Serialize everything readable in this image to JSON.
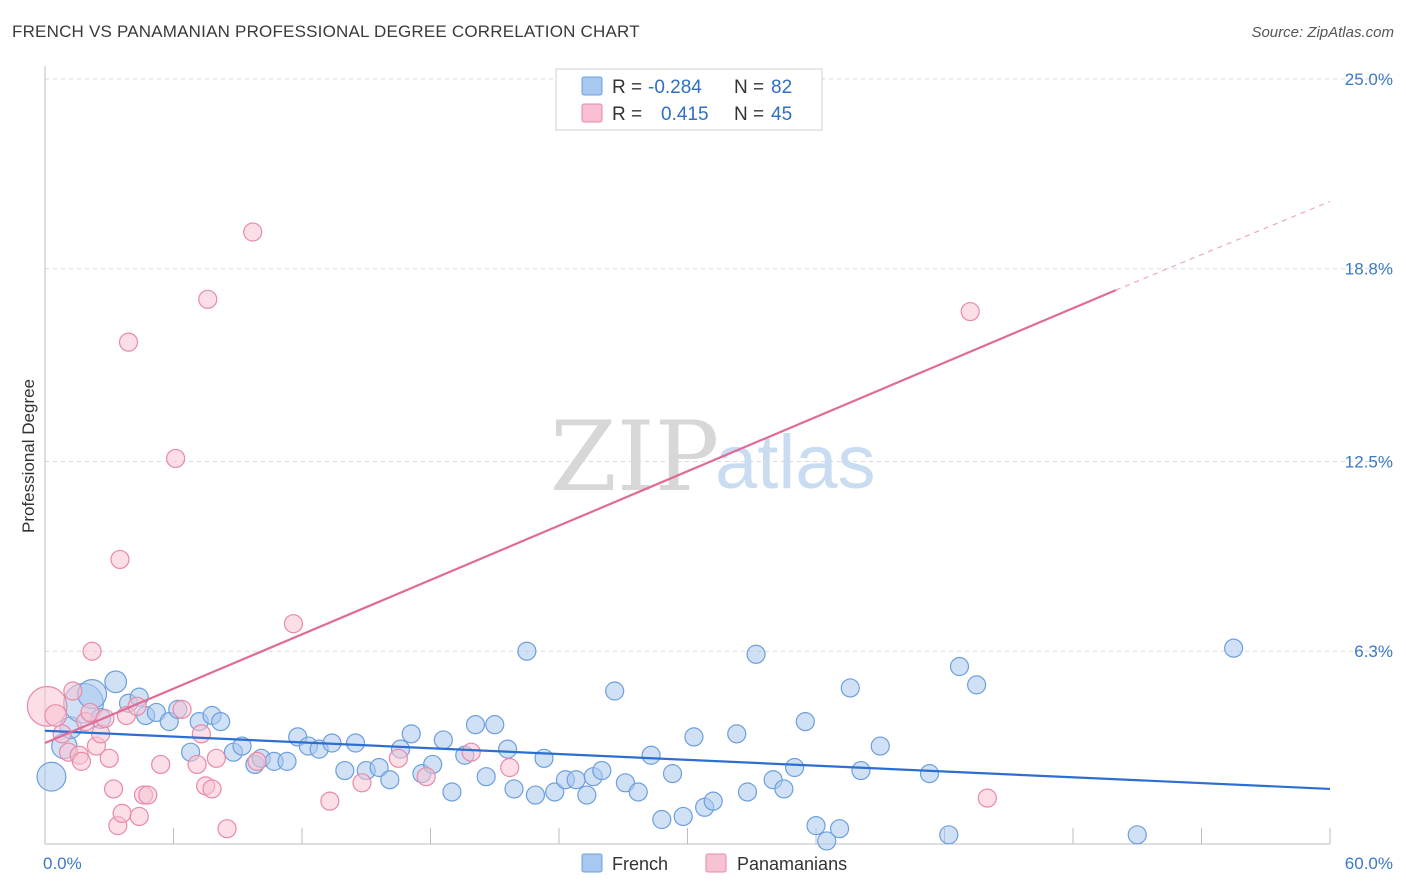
{
  "header": {
    "title": "FRENCH VS PANAMANIAN PROFESSIONAL DEGREE CORRELATION CHART",
    "source": "Source: ZipAtlas.com"
  },
  "watermark": {
    "part1": "ZIP",
    "part2": "atlas"
  },
  "legend": {
    "rows": [
      {
        "r_label": "R =",
        "r_value": "-0.284",
        "n_label": "N =",
        "n_value": "82",
        "color": "#a9c8ef"
      },
      {
        "r_label": "R =",
        "r_value": "0.415",
        "n_label": "N =",
        "n_value": "45",
        "color": "#f7bfd0"
      }
    ]
  },
  "bottom_legend": {
    "french": "French",
    "panamanians": "Panamanians"
  },
  "colors": {
    "french_fill": "#a9c8ef",
    "french_stroke": "#6d9fdc",
    "french_line": "#2c6fd0",
    "pan_fill": "#f7c3d2",
    "pan_stroke": "#e88aa8",
    "pan_line": "#e06b97",
    "tick": "#3b78c6",
    "grid": "#d9d9d9"
  },
  "chart_data": {
    "type": "scatter",
    "title": "FRENCH VS PANAMANIAN PROFESSIONAL DEGREE CORRELATION CHART",
    "xlabel": "",
    "ylabel": "Professional Degree",
    "xlim": [
      0,
      60
    ],
    "ylim": [
      0,
      25
    ],
    "x_tick_labels": [
      "0.0%",
      "60.0%"
    ],
    "y_ticks": [
      6.3,
      12.5,
      18.8,
      25.0
    ],
    "y_tick_labels": [
      "6.3%",
      "12.5%",
      "18.8%",
      "25.0%"
    ],
    "grid": true,
    "legend_position": "top-center",
    "series": [
      {
        "name": "French",
        "r": -0.284,
        "n": 82,
        "trend": {
          "x": [
            0,
            60
          ],
          "y": [
            3.7,
            1.8
          ]
        },
        "points": [
          [
            0.3,
            2.2,
            1.6
          ],
          [
            0.9,
            3.2,
            1.4
          ],
          [
            1.2,
            3.8,
            1.2
          ],
          [
            1.8,
            4.6,
            2.2
          ],
          [
            2.2,
            4.9,
            1.6
          ],
          [
            2.6,
            4.1,
            1.1
          ],
          [
            3.3,
            5.3,
            1.2
          ],
          [
            3.9,
            4.6,
            1
          ],
          [
            4.4,
            4.8,
            1
          ],
          [
            4.7,
            4.2,
            1
          ],
          [
            5.2,
            4.3,
            1
          ],
          [
            5.8,
            4,
            1
          ],
          [
            6.2,
            4.4,
            1
          ],
          [
            6.8,
            3.0,
            1
          ],
          [
            7.2,
            4.0,
            1
          ],
          [
            7.8,
            4.2,
            1
          ],
          [
            8.2,
            4.0,
            1
          ],
          [
            8.8,
            3.0,
            1
          ],
          [
            9.2,
            3.2,
            1
          ],
          [
            9.8,
            2.6,
            1
          ],
          [
            10.1,
            2.8,
            1
          ],
          [
            10.7,
            2.7,
            1
          ],
          [
            11.3,
            2.7,
            1
          ],
          [
            11.8,
            3.5,
            1
          ],
          [
            12.3,
            3.2,
            1
          ],
          [
            12.8,
            3.1,
            1
          ],
          [
            13.4,
            3.3,
            1
          ],
          [
            14.0,
            2.4,
            1
          ],
          [
            14.5,
            3.3,
            1
          ],
          [
            15.0,
            2.4,
            1
          ],
          [
            15.6,
            2.5,
            1
          ],
          [
            16.1,
            2.1,
            1
          ],
          [
            16.6,
            3.1,
            1
          ],
          [
            17.1,
            3.6,
            1
          ],
          [
            17.6,
            2.3,
            1
          ],
          [
            18.1,
            2.6,
            1
          ],
          [
            18.6,
            3.4,
            1
          ],
          [
            19.0,
            1.7,
            1
          ],
          [
            19.6,
            2.9,
            1
          ],
          [
            20.1,
            3.9,
            1
          ],
          [
            20.6,
            2.2,
            1
          ],
          [
            21.0,
            3.9,
            1
          ],
          [
            21.6,
            3.1,
            1
          ],
          [
            21.9,
            1.8,
            1
          ],
          [
            22.5,
            6.3,
            1
          ],
          [
            22.9,
            1.6,
            1
          ],
          [
            23.3,
            2.8,
            1
          ],
          [
            23.8,
            1.7,
            1
          ],
          [
            24.3,
            2.1,
            1
          ],
          [
            24.8,
            2.1,
            1
          ],
          [
            25.3,
            1.6,
            1
          ],
          [
            25.6,
            2.2,
            1
          ],
          [
            26.0,
            2.4,
            1
          ],
          [
            26.6,
            5.0,
            1
          ],
          [
            27.1,
            2.0,
            1
          ],
          [
            27.7,
            1.7,
            1
          ],
          [
            28.3,
            2.9,
            1
          ],
          [
            28.8,
            0.8,
            1
          ],
          [
            29.3,
            2.3,
            1
          ],
          [
            29.8,
            0.9,
            1
          ],
          [
            30.3,
            3.5,
            1
          ],
          [
            30.8,
            1.2,
            1
          ],
          [
            31.2,
            1.4,
            1
          ],
          [
            32.3,
            3.6,
            1
          ],
          [
            32.8,
            1.7,
            1
          ],
          [
            33.2,
            6.2,
            1
          ],
          [
            34.0,
            2.1,
            1
          ],
          [
            34.5,
            1.8,
            1
          ],
          [
            35.0,
            2.5,
            1
          ],
          [
            35.5,
            4.0,
            1
          ],
          [
            36.0,
            0.6,
            1
          ],
          [
            36.5,
            0.1,
            1
          ],
          [
            37.1,
            0.5,
            1
          ],
          [
            37.6,
            5.1,
            1
          ],
          [
            38.1,
            2.4,
            1
          ],
          [
            39.0,
            3.2,
            1
          ],
          [
            41.3,
            2.3,
            1
          ],
          [
            42.2,
            0.3,
            1
          ],
          [
            42.7,
            5.8,
            1
          ],
          [
            43.5,
            5.2,
            1
          ],
          [
            51.0,
            0.3,
            1
          ],
          [
            55.5,
            6.4,
            1
          ]
        ]
      },
      {
        "name": "Panamanians",
        "r": 0.415,
        "n": 45,
        "trend": {
          "x": [
            0,
            50
          ],
          "y": [
            3.3,
            18.1
          ]
        },
        "trend_extension": {
          "x": [
            50,
            60
          ],
          "y": [
            18.1,
            21.0
          ]
        },
        "points": [
          [
            0.1,
            4.5,
            2.2
          ],
          [
            0.5,
            4.2,
            1.2
          ],
          [
            0.8,
            3.6,
            1
          ],
          [
            1.1,
            3.0,
            1
          ],
          [
            1.3,
            5.0,
            1
          ],
          [
            1.6,
            2.9,
            1
          ],
          [
            1.7,
            2.7,
            1
          ],
          [
            1.9,
            4.0,
            1
          ],
          [
            2.1,
            4.3,
            1
          ],
          [
            2.2,
            6.3,
            1
          ],
          [
            2.4,
            3.2,
            1
          ],
          [
            2.6,
            3.6,
            1
          ],
          [
            2.8,
            4.1,
            1
          ],
          [
            3.0,
            2.8,
            1
          ],
          [
            3.2,
            1.8,
            1
          ],
          [
            3.4,
            0.6,
            1
          ],
          [
            3.5,
            9.3,
            1
          ],
          [
            3.6,
            1.0,
            1
          ],
          [
            3.8,
            4.2,
            1
          ],
          [
            3.9,
            16.4,
            1
          ],
          [
            4.3,
            4.5,
            1
          ],
          [
            4.4,
            0.9,
            1
          ],
          [
            4.6,
            1.6,
            1
          ],
          [
            4.8,
            1.6,
            1
          ],
          [
            5.4,
            2.6,
            1
          ],
          [
            6.1,
            12.6,
            1
          ],
          [
            6.4,
            4.4,
            1
          ],
          [
            7.1,
            2.6,
            1
          ],
          [
            7.3,
            3.6,
            1
          ],
          [
            7.5,
            1.9,
            1
          ],
          [
            7.6,
            17.8,
            1
          ],
          [
            7.8,
            1.8,
            1
          ],
          [
            8.0,
            2.8,
            1
          ],
          [
            8.5,
            0.5,
            1
          ],
          [
            9.7,
            20.0,
            1
          ],
          [
            9.9,
            2.7,
            1
          ],
          [
            11.6,
            7.2,
            1
          ],
          [
            13.3,
            1.4,
            1
          ],
          [
            14.8,
            2.0,
            1
          ],
          [
            16.5,
            2.8,
            1
          ],
          [
            17.8,
            2.2,
            1
          ],
          [
            19.9,
            3.0,
            1
          ],
          [
            21.7,
            2.5,
            1
          ],
          [
            43.2,
            17.4,
            1
          ],
          [
            44.0,
            1.5,
            1
          ]
        ]
      }
    ]
  }
}
